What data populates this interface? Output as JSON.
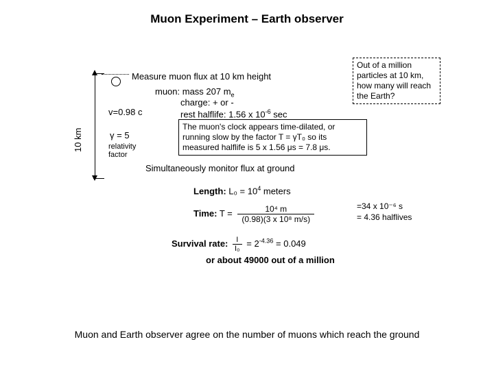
{
  "title": "Muon Experiment – Earth observer",
  "arrow_label": "10 km",
  "measure_line": "Measure muon flux at 10 km height",
  "muon": {
    "mass_prefix": "muon: mass 207 m",
    "mass_sub": "e",
    "charge": "charge: + or -",
    "halflife_prefix": "rest halflife:  1.56 x 10",
    "halflife_sup": "-6",
    "halflife_suffix": " sec"
  },
  "velocity": "v=0.98 c",
  "gamma_label": "γ = 5",
  "rel_factor_1": "relativity",
  "rel_factor_2": "factor",
  "time_dilation_box": "The muon's clock appears time-dilated, or running slow by the factor T = γT₀   so its measured halflife is 5 x 1.56 μs = 7.8 μs.",
  "million_box": "Out of a million particles at 10 km, how many will reach the Earth?",
  "monitor_line": "Simultaneously monitor flux at ground",
  "length": {
    "label": "Length:",
    "value_prefix": " L₀ = 10",
    "value_sup": "4",
    "value_suffix": " meters"
  },
  "time": {
    "label": "Time:",
    "eq": " T = ",
    "num": "10⁴ m",
    "den": "(0.98)(3 x 10⁸ m/s)",
    "result1": "=34 x 10⁻⁶ s",
    "result2": "= 4.36 halflives"
  },
  "survival": {
    "label": "Survival rate:",
    "num": "I",
    "den": "I₀",
    "mid": " = 2",
    "sup": "-4.36",
    "suffix": " = 0.049"
  },
  "conclusion": "or about 49000 out of a million",
  "footer": "Muon and Earth observer agree on the number of muons which reach the ground",
  "colors": {
    "bg": "#ffffff",
    "fg": "#000000"
  }
}
